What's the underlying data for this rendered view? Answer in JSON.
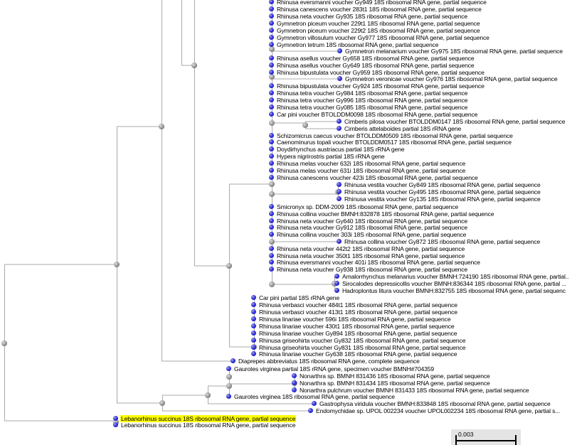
{
  "highlight_color": "#ffff00",
  "leaf_color": "#3333ee",
  "node_color": "#999999",
  "scale_bar": {
    "label": "0.003"
  },
  "leaves": [
    "Rhinusa eversmanni voucher Gy949 18S ribosomal RNA gene, partial sequence",
    "Rhinusa canescens voucher 283t1 18S ribosomal RNA gene, partial sequence",
    "Rhinusa neta voucher Gy935 18S ribosomal RNA gene, partial sequence",
    "Gymnetron piceum voucher 229t1 18S ribosomal RNA gene, partial sequence",
    "Gymnetron piceum voucher 229t2 18S ribosomal RNA gene, partial sequence",
    "Gymnetron villosulum voucher Gy977 18S ribosomal RNA gene, partial sequence",
    "Gymnetron tetrum 18S ribosomal RNA gene, partial sequence",
    "Gymnetron melanarium voucher Gy975 18S ribosomal RNA gene, partial sequence",
    "Rhinusa asellus voucher Gy658 18S ribosomal RNA gene, partial sequence",
    "Rhinusa asellus voucher Gy649 18S ribosomal RNA gene, partial sequence",
    "Rhinusa bipustulata voucher Gy959 18S ribosomal RNA gene, partial sequence",
    "Gymnetron veronicae voucher Gy976 18S ribosomal RNA gene, partial sequence",
    "Rhinusa bipustulata voucher Gy924 18S ribosomal RNA gene, partial sequence",
    "Rhinusa tetra voucher Gy984 18S ribosomal RNA gene, partial sequence",
    "Rhinusa tetra voucher Gy996 18S ribosomal RNA gene, partial sequence",
    "Rhinusa tetra voucher Gy085 18S ribosomal RNA gene, partial sequence",
    "Car pini voucher BTOLDDM0098 18S ribosomal RNA gene, partial sequence",
    "Cimberis pilosa voucher BTOLDDM0147 18S ribosomal RNA gene, partial sequence",
    "Cimberis attelaboides partial 18S rRNA gene",
    "Schizomicrus caecus voucher BTOLDDM0509 18S ribosomal RNA gene, partial sequence",
    "Caenominurus topali voucher BTOLDDM0517 18S ribosomal RNA gene, partial sequence",
    "Doydirhynchus austriacus partial 18S rRNA gene",
    "Hypera nigrirostris partial 18S rRNA gene",
    "Rhinusa melas voucher 632i 18S ribosomal RNA gene, partial sequence",
    "Rhinusa melas voucher 631i 18S ribosomal RNA gene, partial sequence",
    "Rhinusa canescens voucher 423i 18S ribosomal RNA gene, partial sequence",
    "Rhinusa vestita voucher Gy849 18S ribosomal RNA gene, partial sequence",
    "Rhinusa vestita voucher Gy495 18S ribosomal RNA gene, partial sequence",
    "Rhinusa vestita voucher Gy135 18S ribosomal RNA gene, partial sequence",
    "Smicronyx sp. DDM-2009 18S ribosomal RNA gene, partial sequence",
    "Rhinusa collina voucher BMNH:832878 18S ribosomal RNA gene, partial sequence",
    "Rhinusa neta voucher Gy640 18S ribosomal RNA gene, partial sequence",
    "Rhinusa neta voucher Gy912 18S ribosomal RNA gene, partial sequence",
    "Rhinusa collina voucher 303i 18S ribosomal RNA gene, partial sequence",
    "Rhinusa collina voucher Gy872 18S ribosomal RNA gene, partial sequence",
    "Rhinusa neta voucher 442t2 18S ribosomal RNA gene, partial sequence",
    "Rhinusa neta voucher 350t1 18S ribosomal RNA gene, partial sequence",
    "Rhinusa eversmanni voucher 401i 18S ribosomal RNA gene, partial sequence",
    "Rhinusa neta voucher Gy938 18S ribosomal RNA gene, partial sequence",
    "Amalorrhynchus melanarius voucher BMNH:724190 18S ribosomal RNA gene, partial..",
    "Sirocalodes depressicollis voucher BMNH:836344 18S ribosomal RNA gene, partial ...",
    "Hadroplontus litura voucher BMNH:832755 18S ribosomal RNA gene, partial sequenc",
    "Car pini partial 18S rRNA gene",
    "Rhinusa verbasci voucher 484t1 18S ribosomal RNA gene, partial sequence",
    "Rhinusa verbasci voucher 413t1 18S ribosomal RNA gene, partial sequence",
    "Rhinusa linariae voucher 596i 18S ribosomal RNA gene, partial sequence",
    "Rhinusa linariae voucher 430t1 18S ribosomal RNA gene, partial sequence",
    "Rhinusa linariae voucher Gy894 18S ribosomal RNA gene, partial sequence",
    "Rhinusa griseohirta voucher Gy832 18S ribosomal RNA gene, partial sequence",
    "Rhinusa griseohirta voucher Gy831 18S ribosomal RNA gene, partial sequence",
    "Rhinusa linariae voucher Gy638 18S ribosomal RNA gene, partial sequence",
    "Diaprepes abbreviatus 18S ribosomal RNA gene, complete sequence",
    "Gaurotes virginea partial 18S rRNA gene, specimen voucher BMNH#704359",
    "Nonarthra sp. BMNH 831436 18S ribosomal RNA gene, partial sequence",
    "Nonarthra sp. BMNH 831434 18S ribosomal RNA gene, partial sequence",
    "Nonarthra pulchrum voucher BMNH 831433 18S ribosomal RNA gene, partial sequence",
    "Gaurotes virginea 18S ribosomal RNA gene, partial sequence",
    "Gastrophysa viridula voucher BMNH:833848 18S ribosomal RNA gene, partial sequence",
    "Endomychidae sp. UPOL 002234 voucher UPOL002234 18S ribosomal RNA gene, partial s...",
    "Lebanorhinus succinus 18S ribosomal RNA gene, partial sequence",
    "Lebanorhinus succinus 18S ribosomal RNA gene, partial sequence"
  ],
  "highlighted_leaf": 59
}
